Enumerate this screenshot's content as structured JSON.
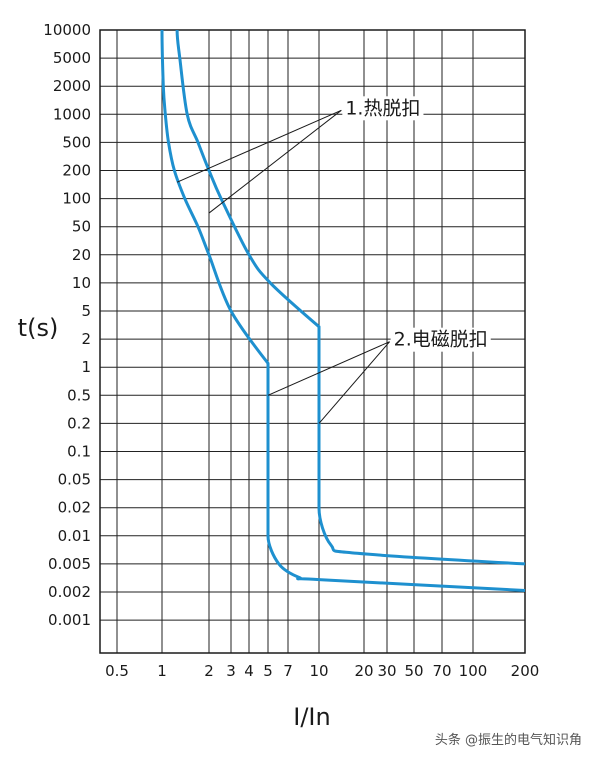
{
  "chart_data": {
    "type": "line",
    "xlabel": "I/In",
    "ylabel": "t(s)",
    "x_scale": "log",
    "y_scale": "log",
    "xlim": [
      0.35,
      200
    ],
    "ylim": [
      0.0004,
      10000
    ],
    "grid": true,
    "x_ticks": [
      {
        "v": 0.5,
        "label": "0.5"
      },
      {
        "v": 1,
        "label": "1"
      },
      {
        "v": 2,
        "label": "2"
      },
      {
        "v": 3,
        "label": "3"
      },
      {
        "v": 4,
        "label": "4"
      },
      {
        "v": 5,
        "label": "5"
      },
      {
        "v": 7,
        "label": "7"
      },
      {
        "v": 10,
        "label": "10"
      },
      {
        "v": 20,
        "label": "20"
      },
      {
        "v": 30,
        "label": "30"
      },
      {
        "v": 50,
        "label": "50"
      },
      {
        "v": 70,
        "label": "70"
      },
      {
        "v": 100,
        "label": "100"
      },
      {
        "v": 200,
        "label": "200"
      }
    ],
    "y_ticks": [
      {
        "v": 10000,
        "label": "10000"
      },
      {
        "v": 5000,
        "label": "5000"
      },
      {
        "v": 2000,
        "label": "2000"
      },
      {
        "v": 1000,
        "label": "1000"
      },
      {
        "v": 500,
        "label": "500"
      },
      {
        "v": 200,
        "label": "200"
      },
      {
        "v": 100,
        "label": "100"
      },
      {
        "v": 50,
        "label": "50"
      },
      {
        "v": 20,
        "label": "20"
      },
      {
        "v": 10,
        "label": "10"
      },
      {
        "v": 5,
        "label": "5"
      },
      {
        "v": 2,
        "label": "2"
      },
      {
        "v": 1,
        "label": "1"
      },
      {
        "v": 0.5,
        "label": "0.5"
      },
      {
        "v": 0.2,
        "label": "0.2"
      },
      {
        "v": 0.1,
        "label": "0.1"
      },
      {
        "v": 0.05,
        "label": "0.05"
      },
      {
        "v": 0.02,
        "label": "0.02"
      },
      {
        "v": 0.01,
        "label": "0.01"
      },
      {
        "v": 0.005,
        "label": "0.005"
      },
      {
        "v": 0.002,
        "label": "0.002"
      },
      {
        "v": 0.001,
        "label": "0.001"
      }
    ],
    "series": [
      {
        "color": "#1e90cf",
        "points": [
          [
            1.0,
            10000
          ],
          [
            1.02,
            2000
          ],
          [
            1.05,
            1000
          ],
          [
            1.1,
            500
          ],
          [
            1.2,
            200
          ],
          [
            1.4,
            100
          ],
          [
            1.7,
            50
          ],
          [
            2.0,
            20
          ],
          [
            3.0,
            5
          ],
          [
            5.0,
            1.1
          ],
          [
            5.0,
            0.01
          ],
          [
            6.0,
            0.005
          ],
          [
            8.0,
            0.0032
          ],
          [
            10.0,
            0.003
          ],
          [
            200,
            0.0021
          ]
        ]
      },
      {
        "color": "#1e90cf",
        "points": [
          [
            1.25,
            10000
          ],
          [
            1.3,
            5000
          ],
          [
            1.45,
            1000
          ],
          [
            1.7,
            500
          ],
          [
            2.0,
            200
          ],
          [
            2.5,
            100
          ],
          [
            4.0,
            20
          ],
          [
            5.2,
            10
          ],
          [
            10.0,
            3
          ],
          [
            10.0,
            0.02
          ],
          [
            12.0,
            0.008
          ],
          [
            18.0,
            0.0065
          ],
          [
            200,
            0.005
          ]
        ]
      }
    ],
    "annotations": [
      {
        "text": "1.热脱扣",
        "x": 15,
        "y": 1000,
        "pointers": [
          [
            1.25,
            150
          ],
          [
            2.0,
            70
          ]
        ]
      },
      {
        "text": "2.电磁脱扣",
        "x": 34,
        "y": 1.7,
        "pointers": [
          [
            5.0,
            0.5
          ],
          [
            10.0,
            0.2
          ]
        ]
      }
    ]
  },
  "watermark": "头条 @振生的电气知识角"
}
